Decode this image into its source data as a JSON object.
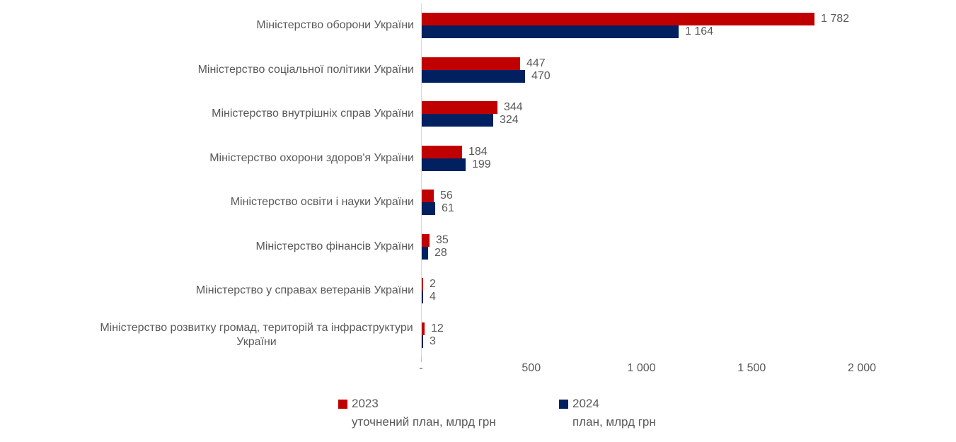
{
  "chart_data": {
    "type": "bar",
    "orientation": "horizontal",
    "title": "",
    "unit": "млрд грн",
    "grid": false,
    "legend_position": "bottom",
    "categories": [
      "Міністерство оборони України",
      "Міністерство соціальної політики України",
      "Міністерство внутрішніх справ України",
      "Міністерство охорони здоров'я України",
      "Міністерство освіти і науки України",
      "Міністерство фінансів України",
      "Міністерство у справах ветеранів України",
      "Міністерство розвитку громад, територій та інфраструктури України"
    ],
    "series": [
      {
        "name": "2023",
        "subtitle": "уточнений план, млрд грн",
        "color": "#c00000",
        "values": [
          1782,
          447,
          344,
          184,
          56,
          35,
          2,
          12
        ],
        "labels": [
          "1 782",
          "447",
          "344",
          "184",
          "56",
          "35",
          "2",
          "12"
        ]
      },
      {
        "name": "2024",
        "subtitle": "план, млрд грн",
        "color": "#002060",
        "values": [
          1164,
          470,
          324,
          199,
          61,
          28,
          4,
          3
        ],
        "labels": [
          "1 164",
          "470",
          "324",
          "199",
          "61",
          "28",
          "4",
          "3"
        ]
      }
    ],
    "x_axis": {
      "min": 0,
      "max": 2000,
      "ticks": [
        {
          "value": 0,
          "label": "-"
        },
        {
          "value": 500,
          "label": "500"
        },
        {
          "value": 1000,
          "label": "1 000"
        },
        {
          "value": 1500,
          "label": "1 500"
        },
        {
          "value": 2000,
          "label": "2 000"
        }
      ]
    },
    "colors": {
      "axis_line": "#d9d9d9",
      "tick_mark": "#bfbfbf",
      "text": "#595959"
    }
  }
}
